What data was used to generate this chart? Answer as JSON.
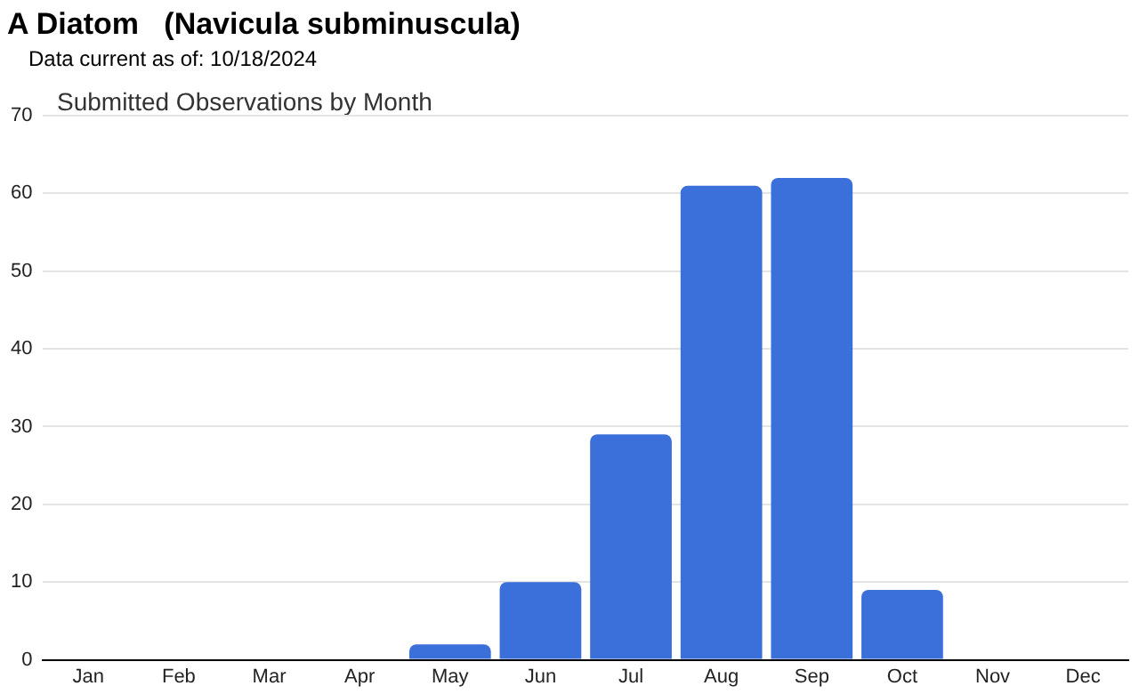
{
  "chart_data": {
    "type": "bar",
    "title": "A Diatom   (Navicula subminuscula)",
    "subtitle": "Data current as of: 10/18/2024",
    "annotations": [
      "Submitted Observations by Month"
    ],
    "categories": [
      "Jan",
      "Feb",
      "Mar",
      "Apr",
      "May",
      "Jun",
      "Jul",
      "Aug",
      "Sep",
      "Oct",
      "Nov",
      "Dec"
    ],
    "values": [
      0,
      0,
      0,
      0,
      2,
      10,
      29,
      61,
      62,
      9,
      0,
      0
    ],
    "color": "#3b6fd9",
    "ylim": [
      0,
      70
    ],
    "yticks": [
      0,
      10,
      20,
      30,
      40,
      50,
      60,
      70
    ],
    "grid": "y",
    "legend": false
  }
}
